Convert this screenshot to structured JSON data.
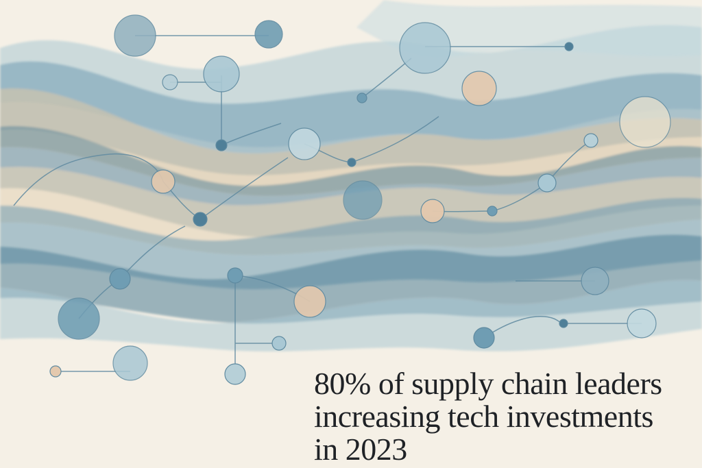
{
  "headline": {
    "line1": "80% of supply chain leaders",
    "line2": "increasing tech investments",
    "line3": "in 2023"
  },
  "colors": {
    "paper": "#f5f0e6",
    "blue_dark": "#4f7f98",
    "blue_mid": "#6f9db3",
    "blue_light": "#a9c8d4",
    "sand": "#d8c6a8",
    "peach": "#e4c9ae",
    "text": "#1f2226"
  }
}
